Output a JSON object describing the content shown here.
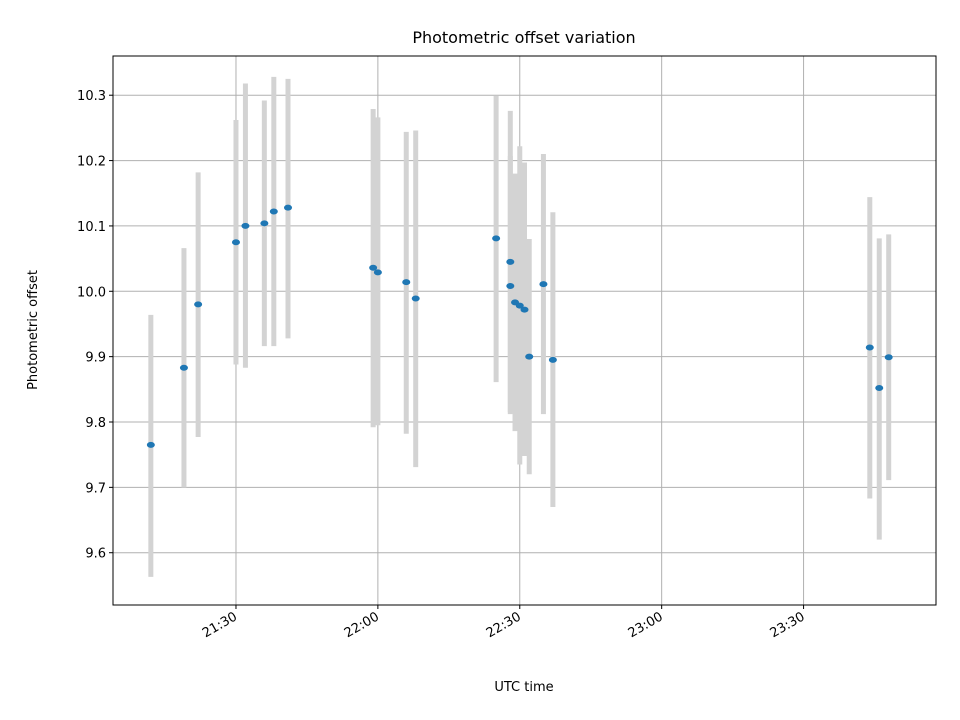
{
  "chart_data": {
    "type": "scatter",
    "title": "Photometric offset variation",
    "xlabel": "UTC time",
    "ylabel": "Photometric offset",
    "grid": true,
    "x_ticks": [
      "21:30",
      "22:00",
      "22:30",
      "23:00",
      "23:30"
    ],
    "y_ticks": [
      "9.6",
      "9.7",
      "9.8",
      "9.9",
      "10.0",
      "10.1",
      "10.2",
      "10.3"
    ],
    "xlim": [
      "21:04",
      "23:58"
    ],
    "ylim": [
      9.52,
      10.36
    ],
    "colors": {
      "marker": "#1f77b4",
      "errorbar": "#d3d3d3",
      "grid": "#b0b0b0"
    },
    "series": [
      {
        "x": [
          "21:12",
          "21:19",
          "21:22",
          "21:30",
          "21:32",
          "21:36",
          "21:38",
          "21:41",
          "21:59",
          "22:00",
          "22:06",
          "22:08",
          "22:25",
          "22:28",
          "22:28",
          "22:29",
          "22:30",
          "22:31",
          "22:32",
          "22:35",
          "22:37",
          "23:44",
          "23:46",
          "23:48"
        ],
        "y": [
          9.765,
          9.883,
          9.98,
          10.075,
          10.1,
          10.104,
          10.122,
          10.128,
          10.036,
          10.029,
          10.014,
          9.989,
          10.081,
          10.045,
          10.008,
          9.983,
          9.978,
          9.972,
          9.9,
          10.011,
          9.895,
          9.914,
          9.852,
          9.899
        ],
        "yerr_low": [
          9.563,
          9.7,
          9.777,
          9.888,
          9.883,
          9.916,
          9.916,
          9.928,
          9.792,
          9.795,
          9.782,
          9.731,
          9.861,
          9.815,
          9.812,
          9.786,
          9.735,
          9.748,
          9.72,
          9.812,
          9.67,
          9.683,
          9.62,
          9.711
        ],
        "yerr_high": [
          9.964,
          10.066,
          10.182,
          10.262,
          10.318,
          10.292,
          10.328,
          10.325,
          10.279,
          10.266,
          10.244,
          10.246,
          10.299,
          10.276,
          10.207,
          10.18,
          10.222,
          10.197,
          10.08,
          10.21,
          10.121,
          10.144,
          10.081,
          10.087
        ]
      }
    ]
  }
}
